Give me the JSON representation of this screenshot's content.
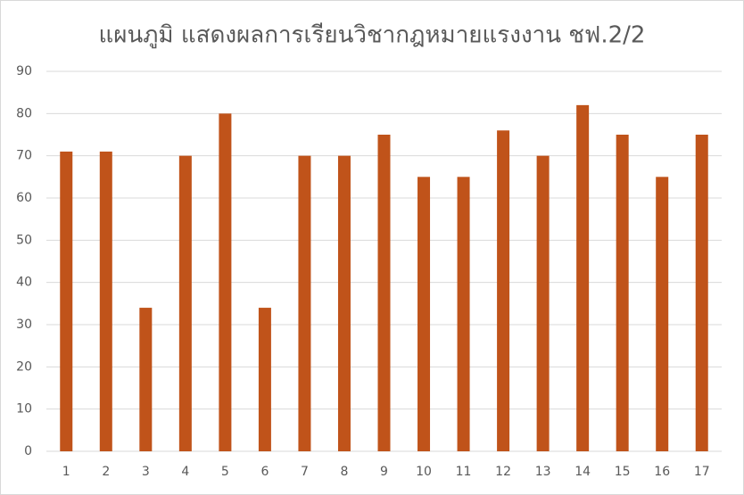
{
  "chart_data": {
    "type": "bar",
    "title": "แผนภูมิ แสดงผลการเรียนวิชากฎหมายแรงงาน  ชฟ.2/2",
    "categories": [
      "1",
      "2",
      "3",
      "4",
      "5",
      "6",
      "7",
      "8",
      "9",
      "10",
      "11",
      "12",
      "13",
      "14",
      "15",
      "16",
      "17"
    ],
    "values": [
      71,
      71,
      34,
      70,
      80,
      34,
      70,
      70,
      75,
      65,
      65,
      76,
      70,
      82,
      75,
      65,
      75
    ],
    "color": "#c0531a",
    "ylim": [
      0,
      90
    ],
    "yticks": [
      0,
      10,
      20,
      30,
      40,
      50,
      60,
      70,
      80,
      90
    ],
    "grid": true
  }
}
